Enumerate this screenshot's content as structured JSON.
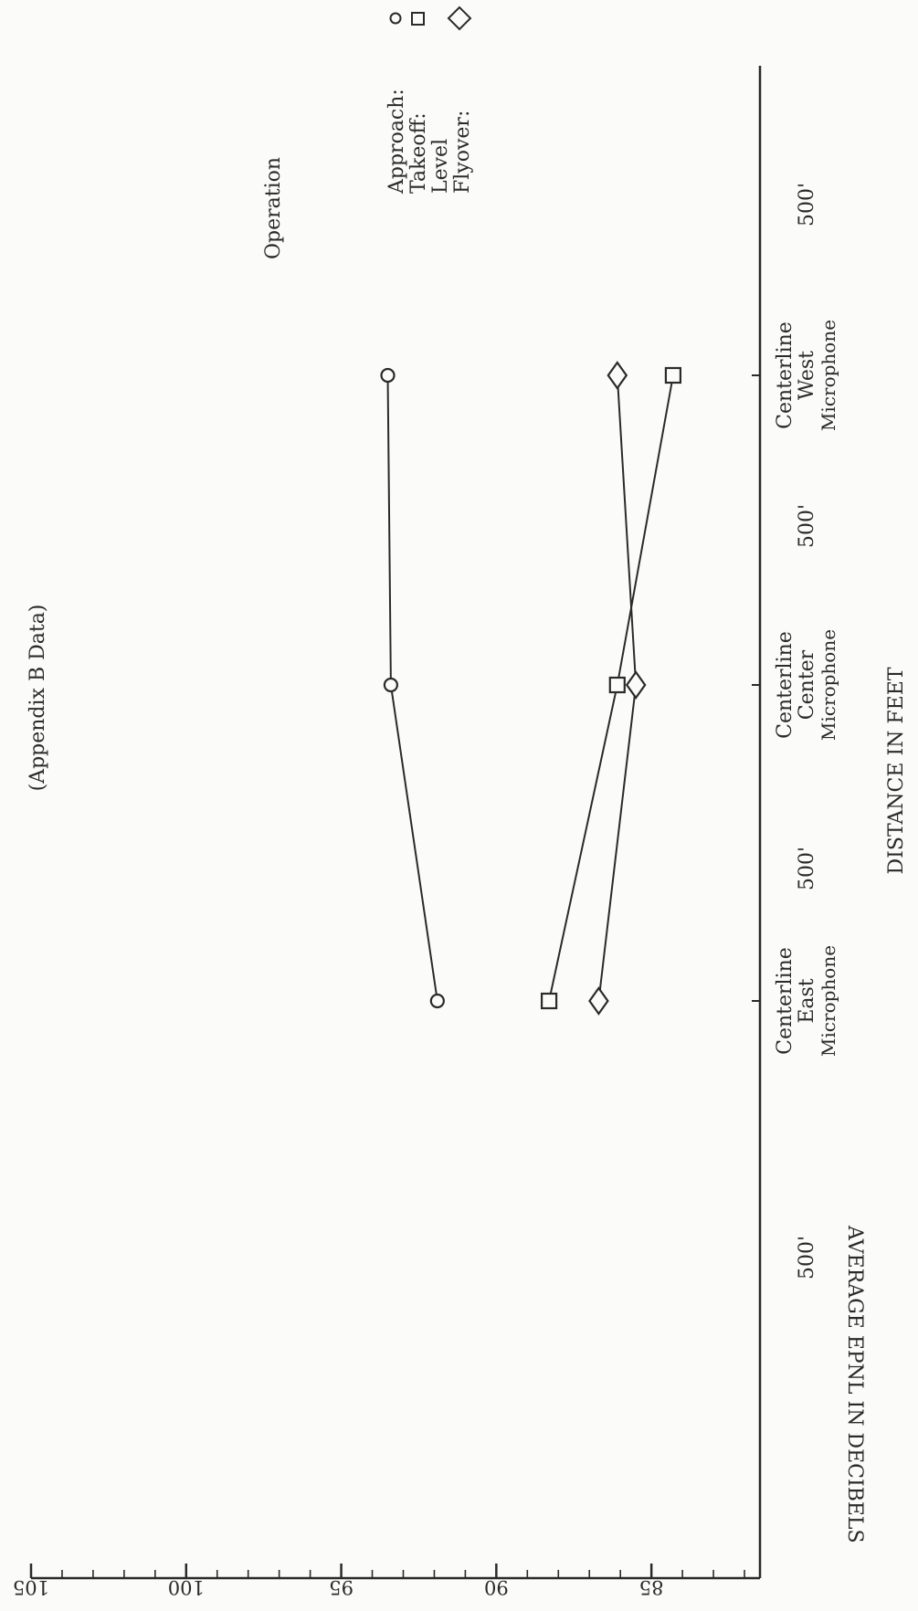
{
  "chart_data": {
    "type": "line",
    "title": "(Appendix B Data)",
    "ylabel": "AVERAGE EPNL IN DECIBELS",
    "xlabel": "DISTANCE IN FEET",
    "ylim": [
      81.5,
      105
    ],
    "y_ticks": [
      105,
      100,
      95,
      90,
      85
    ],
    "categories": [
      [
        "Centerline",
        "East",
        "Microphone"
      ],
      [
        "Centerline",
        "Center",
        "Microphone"
      ],
      [
        "Centerline",
        "West",
        "Microphone"
      ]
    ],
    "distance_labels": [
      "500'",
      "500'",
      "500'",
      "500'"
    ],
    "legend": {
      "heading": "Operation",
      "entries": [
        {
          "label": "Approach:",
          "marker": "circle-icon"
        },
        {
          "label": "Takeoff:",
          "marker": "square-icon"
        },
        {
          "label": "Level",
          "marker": ""
        },
        {
          "label": "Flyover:",
          "marker": "diamond-icon"
        }
      ]
    },
    "series": [
      {
        "marker": "circle",
        "values": [
          91.9,
          93.4,
          93.5
        ]
      },
      {
        "marker": "square",
        "values": [
          88.3,
          86.1,
          84.3
        ]
      },
      {
        "marker": "diamond",
        "values": [
          86.7,
          85.5,
          86.1
        ]
      }
    ],
    "colors": {
      "ink": "#2a2a2a"
    }
  }
}
